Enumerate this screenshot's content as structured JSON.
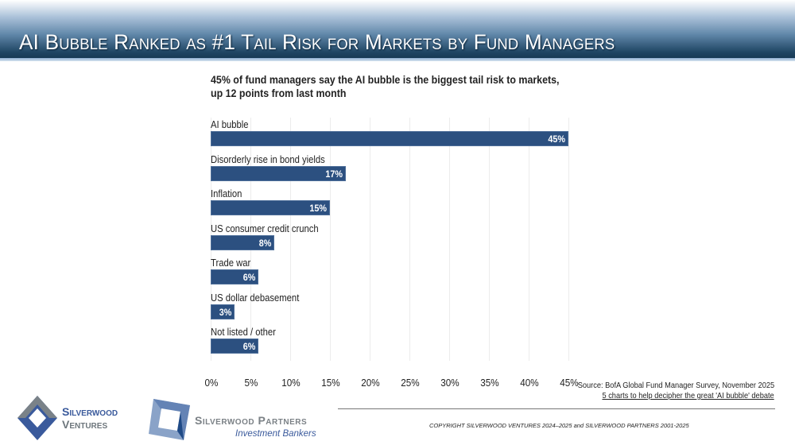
{
  "header": {
    "title": "AI Bubble Ranked as #1 Tail Risk for Markets by Fund Managers"
  },
  "chart_data": {
    "type": "bar",
    "orientation": "horizontal",
    "title": "45% of fund managers say the AI bubble is the biggest tail risk to markets,",
    "subtitle": "up 12 points from last month",
    "categories": [
      "AI bubble",
      "Disorderly rise in bond yields",
      "Inflation",
      "US consumer credit crunch",
      "Trade war",
      "US dollar debasement",
      "Not listed / other"
    ],
    "values": [
      45,
      17,
      15,
      8,
      6,
      3,
      6
    ],
    "value_labels": [
      "45%",
      "17%",
      "15%",
      "8%",
      "6%",
      "3%",
      "6%"
    ],
    "xlim": [
      0,
      45
    ],
    "x_ticks": [
      "0%",
      "5%",
      "10%",
      "15%",
      "20%",
      "25%",
      "30%",
      "35%",
      "40%",
      "45%"
    ],
    "grid": true,
    "bar_color": "#2c5080"
  },
  "source": {
    "text": "Source: BofA Global Fund Manager Survey, November 2025",
    "link": "5 charts to help decipher the great 'AI bubble' debate"
  },
  "footer": {
    "copyright": "COPYRIGHT SILVERWOOD VENTURES 2024–2025 and SILVERWOOD PARTNERS 2001-2025",
    "logo1": {
      "line1": "Silverwood",
      "line2": "Ventures"
    },
    "logo2": {
      "name": "Silverwood Partners",
      "tagline": "Investment Bankers"
    }
  },
  "colors": {
    "header_dark": "#1f4563",
    "bar": "#2c5080",
    "logo_blue": "#3a5a9c",
    "logo_gray": "#7a8288"
  }
}
